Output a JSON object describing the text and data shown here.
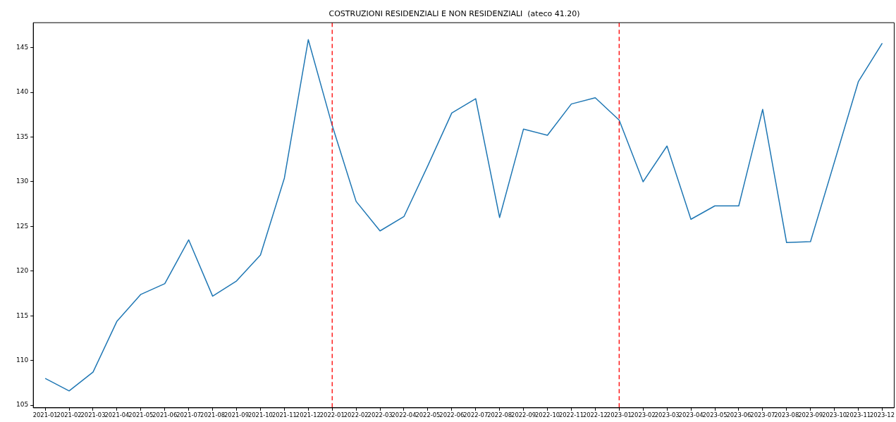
{
  "chart_data": {
    "type": "line",
    "title": "COSTRUZIONI RESIDENZIALI E NON RESIDENZIALI  (ateco 41.20)",
    "categories": [
      "2021-01",
      "2021-02",
      "2021-03",
      "2021-04",
      "2021-05",
      "2021-06",
      "2021-07",
      "2021-08",
      "2021-09",
      "2021-10",
      "2021-11",
      "2021-12",
      "2022-01",
      "2022-02",
      "2022-03",
      "2022-04",
      "2022-05",
      "2022-06",
      "2022-07",
      "2022-08",
      "2022-09",
      "2022-10",
      "2022-11",
      "2022-12",
      "2023-01",
      "2023-02",
      "2023-03",
      "2023-04",
      "2023-05",
      "2023-06",
      "2023-07",
      "2023-08",
      "2023-09",
      "2023-10",
      "2023-11",
      "2023-12"
    ],
    "values": [
      108.0,
      106.6,
      108.7,
      114.4,
      117.4,
      118.6,
      123.5,
      117.2,
      118.9,
      121.8,
      130.4,
      145.9,
      136.3,
      127.8,
      124.5,
      126.1,
      131.8,
      137.7,
      139.3,
      126.0,
      135.9,
      135.2,
      138.7,
      139.4,
      136.9,
      130.0,
      134.0,
      125.8,
      127.3,
      127.3,
      138.1,
      123.2,
      123.3,
      132.2,
      141.2,
      145.5
    ],
    "color": "#1f77b4",
    "ylim": [
      104.7,
      147.8
    ],
    "yticks": [
      105,
      110,
      115,
      120,
      125,
      130,
      135,
      140,
      145
    ],
    "ref_lines": [
      {
        "axis": "x",
        "value": "2022-01",
        "color": "#ff0000",
        "line_style": "dashed"
      },
      {
        "axis": "x",
        "value": "2023-01",
        "color": "#ff0000",
        "line_style": "dashed"
      }
    ],
    "grid": false,
    "legend": false
  }
}
